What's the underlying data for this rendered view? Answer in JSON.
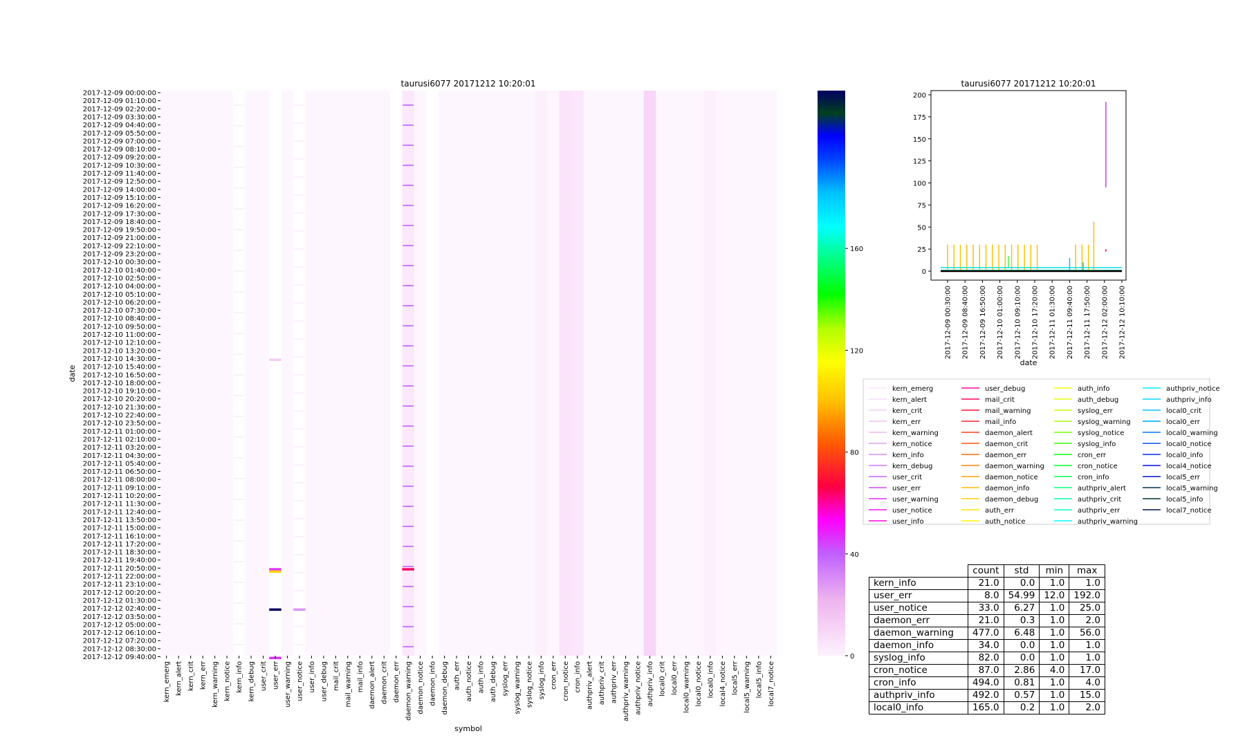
{
  "heatmap": {
    "title": "taurusi6077 20171212 10:20:01",
    "xlabel": "symbol",
    "ylabel": "date",
    "y_tick_labels": [
      "2017-12-09 00:00:00",
      "2017-12-09 01:10:00",
      "2017-12-09 02:20:00",
      "2017-12-09 03:30:00",
      "2017-12-09 04:40:00",
      "2017-12-09 05:50:00",
      "2017-12-09 07:00:00",
      "2017-12-09 08:10:00",
      "2017-12-09 09:20:00",
      "2017-12-09 10:30:00",
      "2017-12-09 11:40:00",
      "2017-12-09 12:50:00",
      "2017-12-09 14:00:00",
      "2017-12-09 15:10:00",
      "2017-12-09 16:20:00",
      "2017-12-09 17:30:00",
      "2017-12-09 18:40:00",
      "2017-12-09 19:50:00",
      "2017-12-09 21:00:00",
      "2017-12-09 22:10:00",
      "2017-12-09 23:20:00",
      "2017-12-10 00:30:00",
      "2017-12-10 01:40:00",
      "2017-12-10 02:50:00",
      "2017-12-10 04:00:00",
      "2017-12-10 05:10:00",
      "2017-12-10 06:20:00",
      "2017-12-10 07:30:00",
      "2017-12-10 08:40:00",
      "2017-12-10 09:50:00",
      "2017-12-10 11:00:00",
      "2017-12-10 12:10:00",
      "2017-12-10 13:20:00",
      "2017-12-10 14:30:00",
      "2017-12-10 15:40:00",
      "2017-12-10 16:50:00",
      "2017-12-10 18:00:00",
      "2017-12-10 19:10:00",
      "2017-12-10 20:20:00",
      "2017-12-10 21:30:00",
      "2017-12-10 22:40:00",
      "2017-12-10 23:50:00",
      "2017-12-11 01:00:00",
      "2017-12-11 02:10:00",
      "2017-12-11 03:20:00",
      "2017-12-11 04:30:00",
      "2017-12-11 05:40:00",
      "2017-12-11 06:50:00",
      "2017-12-11 08:00:00",
      "2017-12-11 09:10:00",
      "2017-12-11 10:20:00",
      "2017-12-11 11:30:00",
      "2017-12-11 12:40:00",
      "2017-12-11 13:50:00",
      "2017-12-11 15:00:00",
      "2017-12-11 16:10:00",
      "2017-12-11 17:20:00",
      "2017-12-11 18:30:00",
      "2017-12-11 19:40:00",
      "2017-12-11 20:50:00",
      "2017-12-11 22:00:00",
      "2017-12-11 23:10:00",
      "2017-12-12 00:20:00",
      "2017-12-12 01:30:00",
      "2017-12-12 02:40:00",
      "2017-12-12 03:50:00",
      "2017-12-12 05:00:00",
      "2017-12-12 06:10:00",
      "2017-12-12 07:20:00",
      "2017-12-12 08:30:00",
      "2017-12-12 09:40:00"
    ],
    "x_tick_labels": [
      "kern_emerg",
      "kern_alert",
      "kern_crit",
      "kern_err",
      "kern_warning",
      "kern_notice",
      "kern_info",
      "kern_debug",
      "user_crit",
      "user_err",
      "user_warning",
      "user_notice",
      "user_info",
      "user_debug",
      "mail_crit",
      "mail_warning",
      "mail_info",
      "daemon_alert",
      "daemon_crit",
      "daemon_err",
      "daemon_warning",
      "daemon_notice",
      "daemon_info",
      "daemon_debug",
      "auth_err",
      "auth_notice",
      "auth_info",
      "auth_debug",
      "syslog_err",
      "syslog_warning",
      "syslog_notice",
      "syslog_info",
      "cron_err",
      "cron_notice",
      "cron_info",
      "authpriv_alert",
      "authpriv_crit",
      "authpriv_err",
      "authpriv_warning",
      "authpriv_notice",
      "authpriv_info",
      "local0_crit",
      "local0_err",
      "local0_warning",
      "local0_notice",
      "local0_info",
      "local4_notice",
      "local5_err",
      "local5_warning",
      "local5_info",
      "local7_notice"
    ],
    "colorbar_ticks": [
      "0",
      "40",
      "80",
      "120",
      "160"
    ]
  },
  "line_chart": {
    "title": "taurusi6077 20171212 10:20:01",
    "xlabel": "date",
    "y_tick_labels": [
      "0",
      "25",
      "50",
      "75",
      "100",
      "125",
      "150",
      "175",
      "200"
    ],
    "x_tick_labels": [
      "2017-12-09 00:30:00",
      "2017-12-09 08:40:00",
      "2017-12-09 16:50:00",
      "2017-12-10 01:00:00",
      "2017-12-10 09:10:00",
      "2017-12-10 17:20:00",
      "2017-12-11 01:30:00",
      "2017-12-11 09:40:00",
      "2017-12-11 17:50:00",
      "2017-12-12 02:00:00",
      "2017-12-12 10:10:00"
    ]
  },
  "legend": {
    "entries": [
      "kern_emerg",
      "kern_alert",
      "kern_crit",
      "kern_err",
      "kern_warning",
      "kern_notice",
      "kern_info",
      "kern_debug",
      "user_crit",
      "user_err",
      "user_warning",
      "user_notice",
      "user_info",
      "user_debug",
      "mail_crit",
      "mail_warning",
      "mail_info",
      "daemon_alert",
      "daemon_crit",
      "daemon_err",
      "daemon_warning",
      "daemon_notice",
      "daemon_info",
      "daemon_debug",
      "auth_err",
      "auth_notice",
      "auth_info",
      "auth_debug",
      "syslog_err",
      "syslog_warning",
      "syslog_notice",
      "syslog_info",
      "cron_err",
      "cron_notice",
      "cron_info",
      "authpriv_alert",
      "authpriv_crit",
      "authpriv_err",
      "authpriv_warning",
      "authpriv_notice",
      "authpriv_info",
      "local0_crit",
      "local0_err",
      "local0_warning",
      "local0_notice",
      "local0_info",
      "local4_notice",
      "local5_err",
      "local5_warning",
      "local5_info",
      "local7_notice"
    ]
  },
  "stats_table": {
    "columns": [
      "count",
      "std",
      "min",
      "max"
    ],
    "rows": [
      {
        "name": "kern_info",
        "count": "21.0",
        "std": "0.0",
        "min": "1.0",
        "max": "1.0"
      },
      {
        "name": "user_err",
        "count": "8.0",
        "std": "54.99",
        "min": "12.0",
        "max": "192.0"
      },
      {
        "name": "user_notice",
        "count": "33.0",
        "std": "6.27",
        "min": "1.0",
        "max": "25.0"
      },
      {
        "name": "daemon_err",
        "count": "21.0",
        "std": "0.3",
        "min": "1.0",
        "max": "2.0"
      },
      {
        "name": "daemon_warning",
        "count": "477.0",
        "std": "6.48",
        "min": "1.0",
        "max": "56.0"
      },
      {
        "name": "daemon_info",
        "count": "34.0",
        "std": "0.0",
        "min": "1.0",
        "max": "1.0"
      },
      {
        "name": "syslog_info",
        "count": "82.0",
        "std": "0.0",
        "min": "1.0",
        "max": "1.0"
      },
      {
        "name": "cron_notice",
        "count": "87.0",
        "std": "2.86",
        "min": "4.0",
        "max": "17.0"
      },
      {
        "name": "cron_info",
        "count": "494.0",
        "std": "0.81",
        "min": "1.0",
        "max": "4.0"
      },
      {
        "name": "authpriv_info",
        "count": "492.0",
        "std": "0.57",
        "min": "1.0",
        "max": "15.0"
      },
      {
        "name": "local0_info",
        "count": "165.0",
        "std": "0.2",
        "min": "1.0",
        "max": "2.0"
      }
    ]
  },
  "chart_data": [
    {
      "type": "heatmap",
      "title": "taurusi6077 20171212 10:20:01",
      "xlabel": "symbol",
      "ylabel": "date",
      "zlim": [
        0,
        192
      ],
      "colormap": "gist_ncar_r",
      "highlights": [
        {
          "symbol": "user_err",
          "date": "2017-12-10 14:30:00",
          "value": 12
        },
        {
          "symbol": "user_err",
          "date": "2017-12-11 20:50:00",
          "value": 40
        },
        {
          "symbol": "user_err",
          "date": "2017-12-11 21:10:00",
          "value": 90
        },
        {
          "symbol": "user_err",
          "date": "2017-12-12 02:40:00",
          "value": 192
        },
        {
          "symbol": "user_err",
          "date": "2017-12-12 09:40:00",
          "value": 40
        },
        {
          "symbol": "user_notice",
          "date": "2017-12-12 02:40:00",
          "value": 25
        },
        {
          "symbol": "daemon_warning",
          "date": "2017-12-11 20:50:00",
          "value": 56
        }
      ]
    },
    {
      "type": "line",
      "title": "taurusi6077 20171212 10:20:01",
      "xlabel": "date",
      "ylim": [
        0,
        200
      ],
      "series": [
        {
          "name": "daemon_warning",
          "color": "#ffc000",
          "x": [
            "2017-12-09 00:30:00",
            "2017-12-09 03:30:00",
            "2017-12-09 06:30:00",
            "2017-12-09 09:30:00",
            "2017-12-09 12:30:00",
            "2017-12-09 15:30:00",
            "2017-12-09 18:30:00",
            "2017-12-09 21:30:00",
            "2017-12-10 00:30:00",
            "2017-12-10 03:30:00",
            "2017-12-10 06:30:00",
            "2017-12-10 09:30:00",
            "2017-12-10 12:30:00",
            "2017-12-10 15:30:00",
            "2017-12-10 18:30:00",
            "2017-12-11 12:30:00",
            "2017-12-11 15:30:00",
            "2017-12-11 18:30:00",
            "2017-12-11 21:00:00"
          ],
          "y": [
            30,
            30,
            30,
            30,
            30,
            30,
            30,
            30,
            30,
            30,
            30,
            30,
            30,
            30,
            30,
            30,
            30,
            30,
            56
          ]
        },
        {
          "name": "user_err",
          "color": "#c040ff",
          "x": [
            "2017-12-12 02:40:00"
          ],
          "y": [
            192
          ],
          "ylow": [
            95
          ]
        },
        {
          "name": "user_notice",
          "color": "#ff0080",
          "x": [
            "2017-12-12 02:40:00"
          ],
          "y": [
            25
          ],
          "ylow": [
            22
          ]
        },
        {
          "name": "cron_notice",
          "color": "#40ff40",
          "x": [
            "2017-12-10 05:00:00"
          ],
          "y": [
            17
          ],
          "ylow": [
            4
          ]
        },
        {
          "name": "authpriv_info",
          "color": "#00c0ff",
          "x": [
            "2017-12-11 09:40:00",
            "2017-12-11 16:00:00"
          ],
          "y": [
            15,
            10
          ],
          "ylow": [
            1,
            1
          ]
        },
        {
          "name": "cron_info",
          "color": "#00e0e0",
          "baseline": 4
        },
        {
          "name": "local0_info",
          "color": "#00d0a0",
          "baseline": 1
        }
      ]
    },
    {
      "type": "table",
      "columns": [
        "count",
        "std",
        "min",
        "max"
      ],
      "rows": [
        "kern_info",
        "user_err",
        "user_notice",
        "daemon_err",
        "daemon_warning",
        "daemon_info",
        "syslog_info",
        "cron_notice",
        "cron_info",
        "authpriv_info",
        "local0_info"
      ]
    }
  ]
}
